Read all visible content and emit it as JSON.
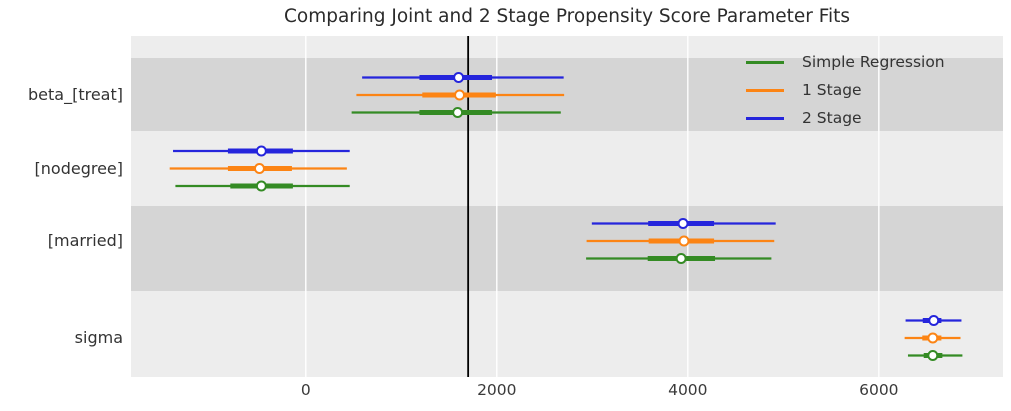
{
  "figure": {
    "title": "Comparing Joint and 2 Stage Propensity Score Parameter Fits"
  },
  "chart_data": {
    "type": "forest_plot",
    "title": "Comparing Joint and 2 Stage Propensity Score Parameter Fits",
    "xlabel": "",
    "ylabel": "",
    "orientation": "horizontal",
    "xlim": [
      -1830,
      7300
    ],
    "x_ticks": [
      {
        "label": "0",
        "value": 0
      },
      {
        "label": "2000",
        "value": 2000
      },
      {
        "label": "4000",
        "value": 4000
      },
      {
        "label": "6000",
        "value": 6000
      }
    ],
    "gridlines": {
      "orientation": "vertical",
      "color": "#ffffff"
    },
    "background_bands": {
      "light": "#ededed",
      "dark": "#d5d5d5",
      "shaded_params": [
        "beta_[treat]",
        "[married]"
      ]
    },
    "reference_line": {
      "value": 1700,
      "orientation": "vertical",
      "color": "#000000"
    },
    "rows": [
      {
        "label": "beta_[treat]"
      },
      {
        "label": "[nodegree]"
      },
      {
        "label": "[married]"
      },
      {
        "label": "sigma"
      }
    ],
    "legend": {
      "position": "upper_right",
      "entries": [
        {
          "label": "Simple Regression",
          "color": "#348b24"
        },
        {
          "label": "1 Stage",
          "color": "#fc8414"
        },
        {
          "label": "2 Stage",
          "color": "#2525dc"
        }
      ]
    },
    "series": [
      {
        "name": "Simple Regression",
        "color": "#348b24",
        "points": [
          {
            "param": "beta_[treat]",
            "median": 1590,
            "hdi_inner": [
              1190,
              1950
            ],
            "hdi_outer": [
              480,
              2670
            ]
          },
          {
            "param": "[nodegree]",
            "median": -465,
            "hdi_inner": [
              -790,
              -135
            ],
            "hdi_outer": [
              -1365,
              460
            ]
          },
          {
            "param": "[married]",
            "median": 3930,
            "hdi_inner": [
              3580,
              4285
            ],
            "hdi_outer": [
              2935,
              4875
            ]
          },
          {
            "param": "sigma",
            "median": 6565,
            "hdi_inner": [
              6470,
              6665
            ],
            "hdi_outer": [
              6305,
              6875
            ]
          }
        ]
      },
      {
        "name": "1 Stage",
        "color": "#fc8414",
        "points": [
          {
            "param": "beta_[treat]",
            "median": 1610,
            "hdi_inner": [
              1220,
              1990
            ],
            "hdi_outer": [
              530,
              2705
            ]
          },
          {
            "param": "[nodegree]",
            "median": -485,
            "hdi_inner": [
              -815,
              -145
            ],
            "hdi_outer": [
              -1425,
              430
            ]
          },
          {
            "param": "[married]",
            "median": 3960,
            "hdi_inner": [
              3590,
              4275
            ],
            "hdi_outer": [
              2940,
              4905
            ]
          },
          {
            "param": "sigma",
            "median": 6565,
            "hdi_inner": [
              6455,
              6655
            ],
            "hdi_outer": [
              6270,
              6855
            ]
          }
        ]
      },
      {
        "name": "2 Stage",
        "color": "#2525dc",
        "points": [
          {
            "param": "beta_[treat]",
            "median": 1600,
            "hdi_inner": [
              1190,
              1950
            ],
            "hdi_outer": [
              590,
              2700
            ]
          },
          {
            "param": "[nodegree]",
            "median": -465,
            "hdi_inner": [
              -815,
              -135
            ],
            "hdi_outer": [
              -1390,
              460
            ]
          },
          {
            "param": "[married]",
            "median": 3950,
            "hdi_inner": [
              3585,
              4275
            ],
            "hdi_outer": [
              2995,
              4920
            ]
          },
          {
            "param": "sigma",
            "median": 6575,
            "hdi_inner": [
              6460,
              6655
            ],
            "hdi_outer": [
              6280,
              6865
            ]
          }
        ]
      }
    ]
  }
}
